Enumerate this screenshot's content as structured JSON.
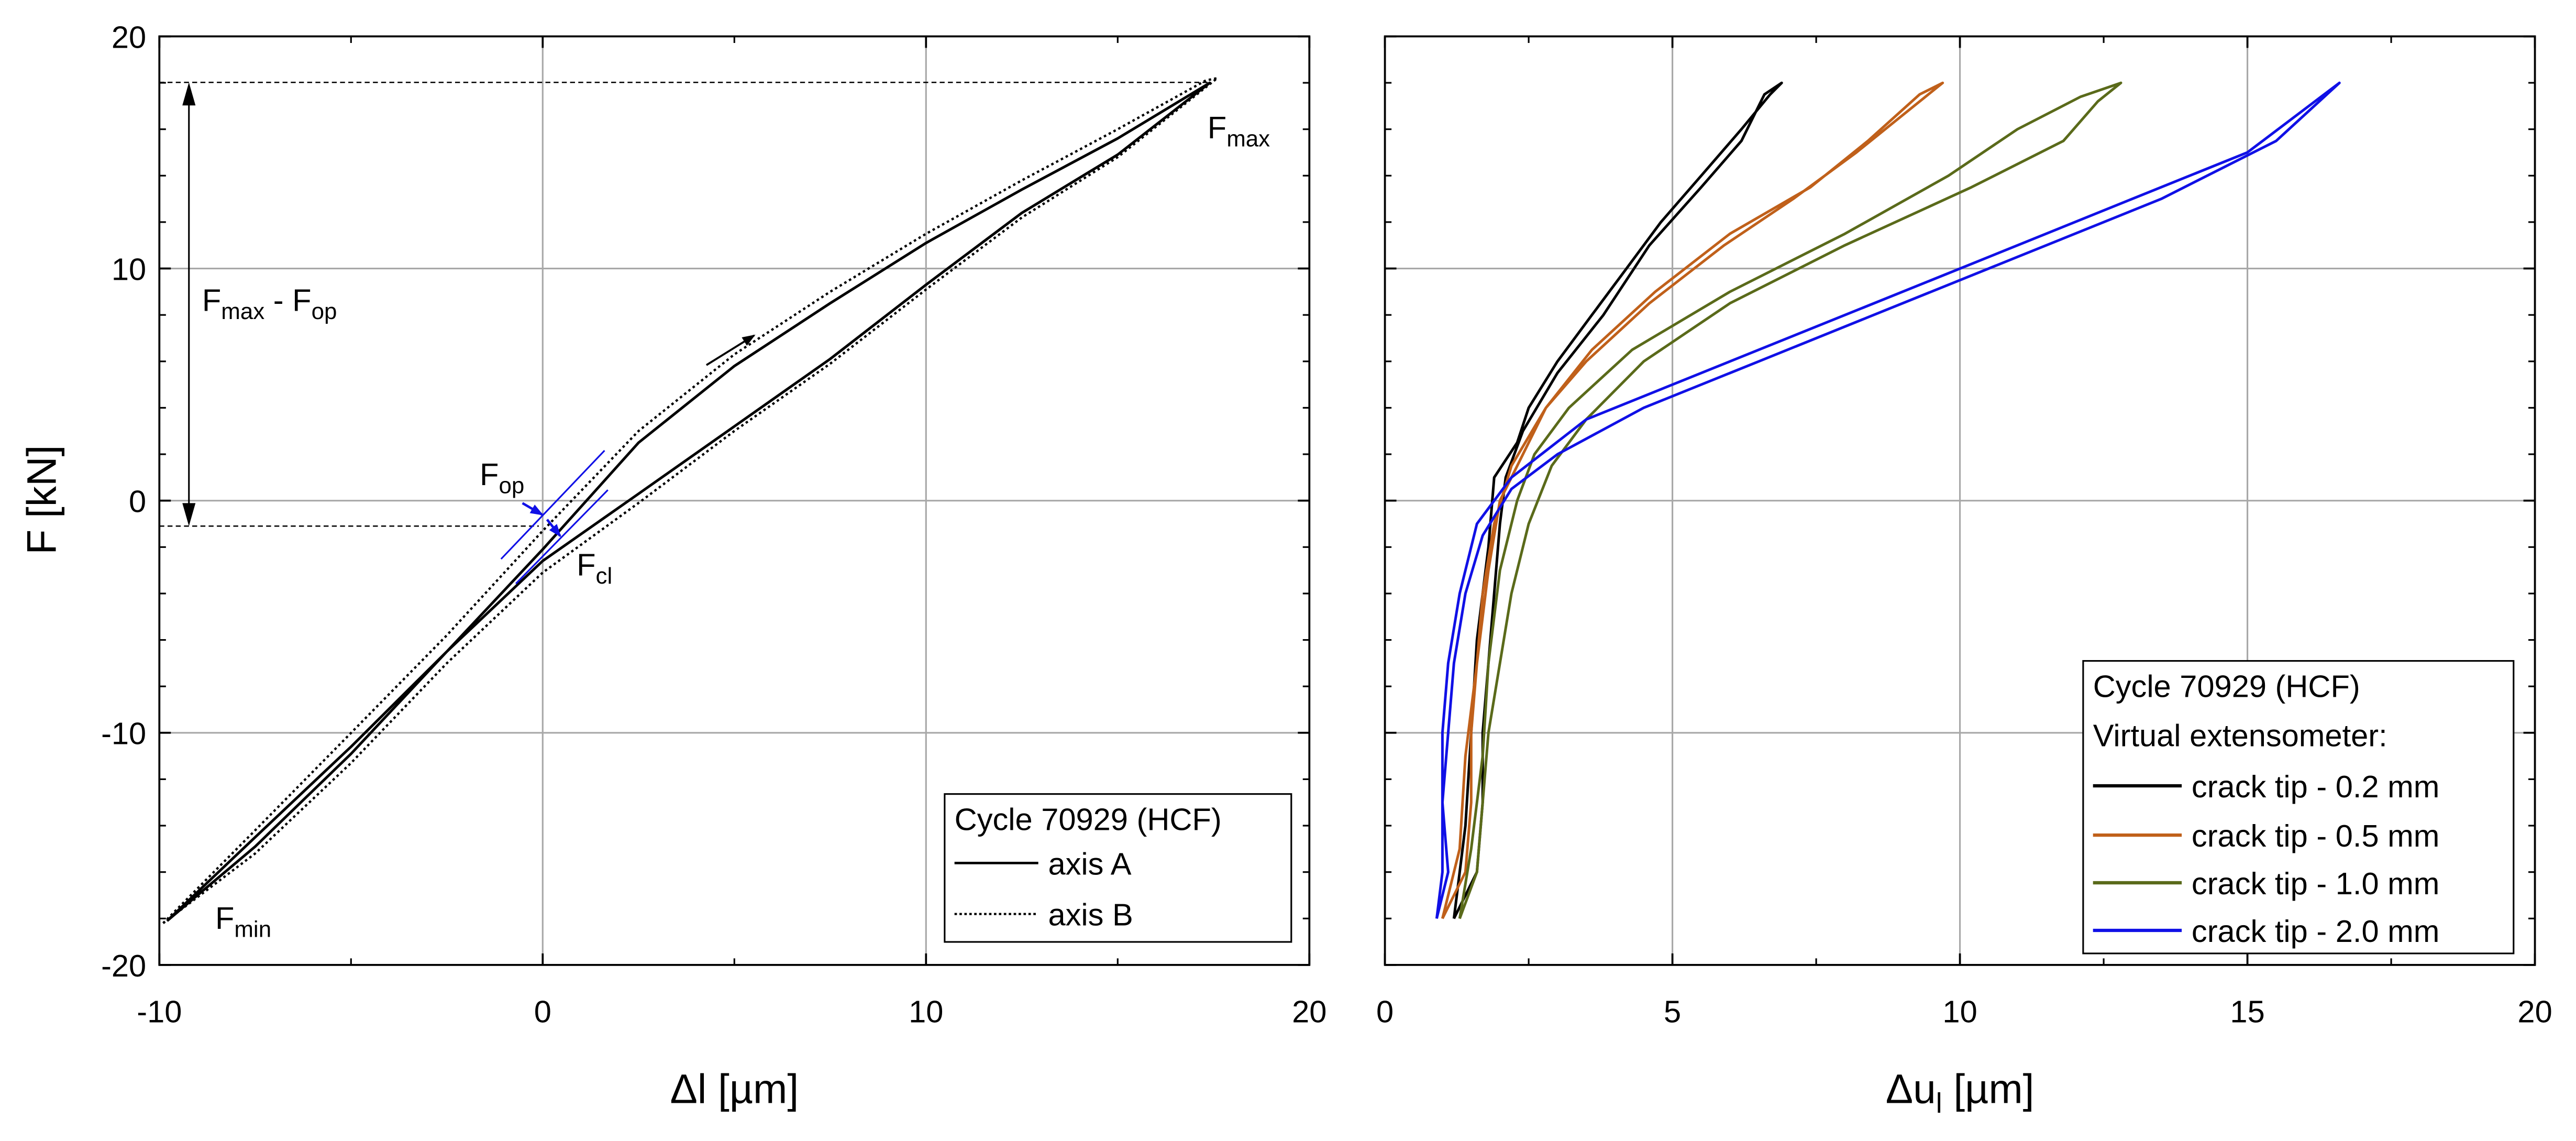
{
  "chart_data": [
    {
      "type": "line",
      "xlabel": "Δl [µm]",
      "ylabel": "F [kN]",
      "xlim": [
        -10,
        20
      ],
      "ylim": [
        -20,
        20
      ],
      "x_ticks": [
        "-10",
        "0",
        "10",
        "20"
      ],
      "y_ticks": [
        "-20",
        "-10",
        "0",
        "10",
        "20"
      ],
      "grid": true,
      "legend": {
        "placement": "bottom-right",
        "title": "Cycle 70929 (HCF)",
        "entries": [
          "axis A",
          "axis B"
        ]
      },
      "series": [
        {
          "name": "axis A",
          "style": "solid",
          "color": "#000000",
          "loading": [
            [
              -9.8,
              -18.1
            ],
            [
              -7.5,
              -14.5
            ],
            [
              -5,
              -10.6
            ],
            [
              -2.5,
              -6.5
            ],
            [
              0,
              -2.1
            ],
            [
              2.5,
              2.5
            ],
            [
              5,
              5.8
            ],
            [
              7.5,
              8.5
            ],
            [
              10,
              11.1
            ],
            [
              12.5,
              13.4
            ],
            [
              15,
              15.6
            ],
            [
              17.2,
              17.8
            ],
            [
              17.4,
              18
            ]
          ],
          "unloading": [
            [
              17.4,
              18
            ],
            [
              15,
              14.9
            ],
            [
              12.5,
              12.4
            ],
            [
              10,
              9.3
            ],
            [
              7.5,
              6.1
            ],
            [
              5,
              3.2
            ],
            [
              2.5,
              0.3
            ],
            [
              0,
              -2.6
            ],
            [
              -2.5,
              -6.5
            ],
            [
              -5,
              -10.9
            ],
            [
              -7.5,
              -14.9
            ],
            [
              -9.8,
              -18.1
            ]
          ]
        },
        {
          "name": "axis B",
          "style": "dotted",
          "color": "#000000",
          "loading": [
            [
              -9.9,
              -18.2
            ],
            [
              -7.5,
              -14.2
            ],
            [
              -5,
              -10
            ],
            [
              -2.5,
              -5.8
            ],
            [
              0,
              -1.3
            ],
            [
              2.5,
              3
            ],
            [
              5,
              6.3
            ],
            [
              7.5,
              9
            ],
            [
              10,
              11.5
            ],
            [
              12.5,
              13.8
            ],
            [
              15,
              16
            ],
            [
              17.3,
              18.1
            ],
            [
              17.6,
              18.2
            ]
          ],
          "unloading": [
            [
              17.6,
              18.2
            ],
            [
              15,
              14.8
            ],
            [
              12.5,
              12.2
            ],
            [
              10,
              9.1
            ],
            [
              7.5,
              5.9
            ],
            [
              5,
              3
            ],
            [
              2.5,
              -0.1
            ],
            [
              0,
              -3.1
            ],
            [
              -2.5,
              -7
            ],
            [
              -5,
              -11.3
            ],
            [
              -7.5,
              -15.2
            ],
            [
              -9.9,
              -18.2
            ]
          ]
        }
      ],
      "annotations": [
        {
          "main": "F",
          "sub": "max",
          "x": 17.4,
          "y": 18
        },
        {
          "main": "F",
          "sub": "min",
          "x": -9.8,
          "y": -18.1
        },
        {
          "main": "F",
          "sub": "op",
          "x": 0,
          "y": -1.2
        },
        {
          "main": "F",
          "sub": "cl",
          "x": 0.6,
          "y": -1.9
        },
        {
          "parts": [
            {
              "main": "F",
              "sub": "max"
            },
            {
              "main": " - F",
              "sub": "op"
            }
          ],
          "from_y": 18,
          "to_y": -1.2
        }
      ]
    },
    {
      "type": "line",
      "xlabel": "Δu",
      "xlabel_sub": "l",
      "xlabel_unit": " [µm]",
      "xlim": [
        0,
        20
      ],
      "ylim": [
        -20,
        20
      ],
      "x_ticks": [
        "0",
        "5",
        "10",
        "15",
        "20"
      ],
      "grid": true,
      "legend": {
        "placement": "bottom-right",
        "title": "Cycle 70929 (HCF)",
        "subtitle": "Virtual extensometer:",
        "entries": [
          "crack tip - 0.2 mm",
          "crack tip - 0.5 mm",
          "crack tip - 1.0 mm",
          "crack tip - 2.0 mm"
        ]
      },
      "series": [
        {
          "name": "crack tip - 0.2 mm",
          "color": "#000000",
          "loading": [
            [
              1.2,
              -18
            ],
            [
              1.6,
              -16
            ],
            [
              1.7,
              -13
            ],
            [
              1.7,
              -10
            ],
            [
              1.8,
              -7
            ],
            [
              1.9,
              -4
            ],
            [
              2,
              -1
            ],
            [
              2.1,
              1
            ],
            [
              2.4,
              3
            ],
            [
              3,
              5.5
            ],
            [
              3.8,
              8
            ],
            [
              4.6,
              11
            ],
            [
              5.5,
              13.5
            ],
            [
              6.2,
              15.5
            ],
            [
              6.6,
              17.5
            ],
            [
              6.9,
              18
            ]
          ],
          "unloading": [
            [
              6.9,
              18
            ],
            [
              6.7,
              17.5
            ],
            [
              6.2,
              16
            ],
            [
              5.5,
              14
            ],
            [
              4.8,
              12
            ],
            [
              4.2,
              10
            ],
            [
              3.6,
              8
            ],
            [
              3,
              6
            ],
            [
              2.5,
              4
            ],
            [
              2.3,
              2.5
            ],
            [
              1.9,
              1
            ],
            [
              1.8,
              -2
            ],
            [
              1.6,
              -6
            ],
            [
              1.5,
              -10
            ],
            [
              1.4,
              -14
            ],
            [
              1.2,
              -18
            ]
          ]
        },
        {
          "name": "crack tip - 0.5 mm",
          "color": "#c0601a",
          "loading": [
            [
              1.0,
              -18
            ],
            [
              1.4,
              -16
            ],
            [
              1.5,
              -13
            ],
            [
              1.5,
              -10
            ],
            [
              1.6,
              -7
            ],
            [
              1.7,
              -4
            ],
            [
              1.9,
              -1
            ],
            [
              2.2,
              1.5
            ],
            [
              2.8,
              4
            ],
            [
              3.6,
              6.5
            ],
            [
              4.7,
              9
            ],
            [
              6,
              11.5
            ],
            [
              7.4,
              13.5
            ],
            [
              8.4,
              15.5
            ],
            [
              9.3,
              17.5
            ],
            [
              9.7,
              18
            ]
          ],
          "unloading": [
            [
              9.7,
              18
            ],
            [
              9.2,
              17
            ],
            [
              8.2,
              15
            ],
            [
              7.1,
              13
            ],
            [
              5.9,
              11
            ],
            [
              4.6,
              8.5
            ],
            [
              3.5,
              6
            ],
            [
              2.8,
              4
            ],
            [
              2.4,
              2
            ],
            [
              2,
              0
            ],
            [
              1.8,
              -3
            ],
            [
              1.6,
              -7
            ],
            [
              1.4,
              -11
            ],
            [
              1.3,
              -15
            ],
            [
              1.0,
              -18
            ]
          ]
        },
        {
          "name": "crack tip - 1.0 mm",
          "color": "#5a6a1a",
          "loading": [
            [
              1.3,
              -18
            ],
            [
              1.6,
              -16
            ],
            [
              1.7,
              -13
            ],
            [
              1.8,
              -10
            ],
            [
              2,
              -7
            ],
            [
              2.2,
              -4
            ],
            [
              2.5,
              -1
            ],
            [
              2.9,
              1.5
            ],
            [
              3.5,
              3.5
            ],
            [
              4.5,
              6
            ],
            [
              6,
              8.5
            ],
            [
              8,
              11
            ],
            [
              10.2,
              13.5
            ],
            [
              11.8,
              15.5
            ],
            [
              12.4,
              17.2
            ],
            [
              12.8,
              18
            ]
          ],
          "unloading": [
            [
              12.8,
              18
            ],
            [
              12.1,
              17.4
            ],
            [
              11,
              16
            ],
            [
              9.8,
              14
            ],
            [
              8,
              11.5
            ],
            [
              6,
              9
            ],
            [
              4.3,
              6.5
            ],
            [
              3.2,
              4
            ],
            [
              2.6,
              2
            ],
            [
              2.3,
              0
            ],
            [
              2,
              -3
            ],
            [
              1.8,
              -7
            ],
            [
              1.7,
              -11
            ],
            [
              1.5,
              -15
            ],
            [
              1.3,
              -18
            ]
          ]
        },
        {
          "name": "crack tip - 2.0 mm",
          "color": "#1010e6",
          "loading": [
            [
              0.9,
              -18
            ],
            [
              1.0,
              -16
            ],
            [
              1.0,
              -13
            ],
            [
              1.1,
              -10
            ],
            [
              1.2,
              -7
            ],
            [
              1.4,
              -4
            ],
            [
              1.7,
              -1.5
            ],
            [
              2.2,
              0.5
            ],
            [
              3,
              2
            ],
            [
              4.5,
              4
            ],
            [
              6.5,
              6
            ],
            [
              8.5,
              8
            ],
            [
              11,
              10.5
            ],
            [
              13.5,
              13
            ],
            [
              15.5,
              15.5
            ],
            [
              16.6,
              18
            ]
          ],
          "unloading": [
            [
              16.6,
              18
            ],
            [
              15,
              15
            ],
            [
              12.5,
              12.5
            ],
            [
              10,
              10
            ],
            [
              7.5,
              7.5
            ],
            [
              5,
              5
            ],
            [
              3.5,
              3.5
            ],
            [
              2.2,
              1
            ],
            [
              1.6,
              -1
            ],
            [
              1.3,
              -4
            ],
            [
              1.1,
              -7
            ],
            [
              1.0,
              -10
            ],
            [
              1.0,
              -13
            ],
            [
              1.1,
              -16
            ],
            [
              0.9,
              -18
            ]
          ]
        }
      ]
    }
  ]
}
